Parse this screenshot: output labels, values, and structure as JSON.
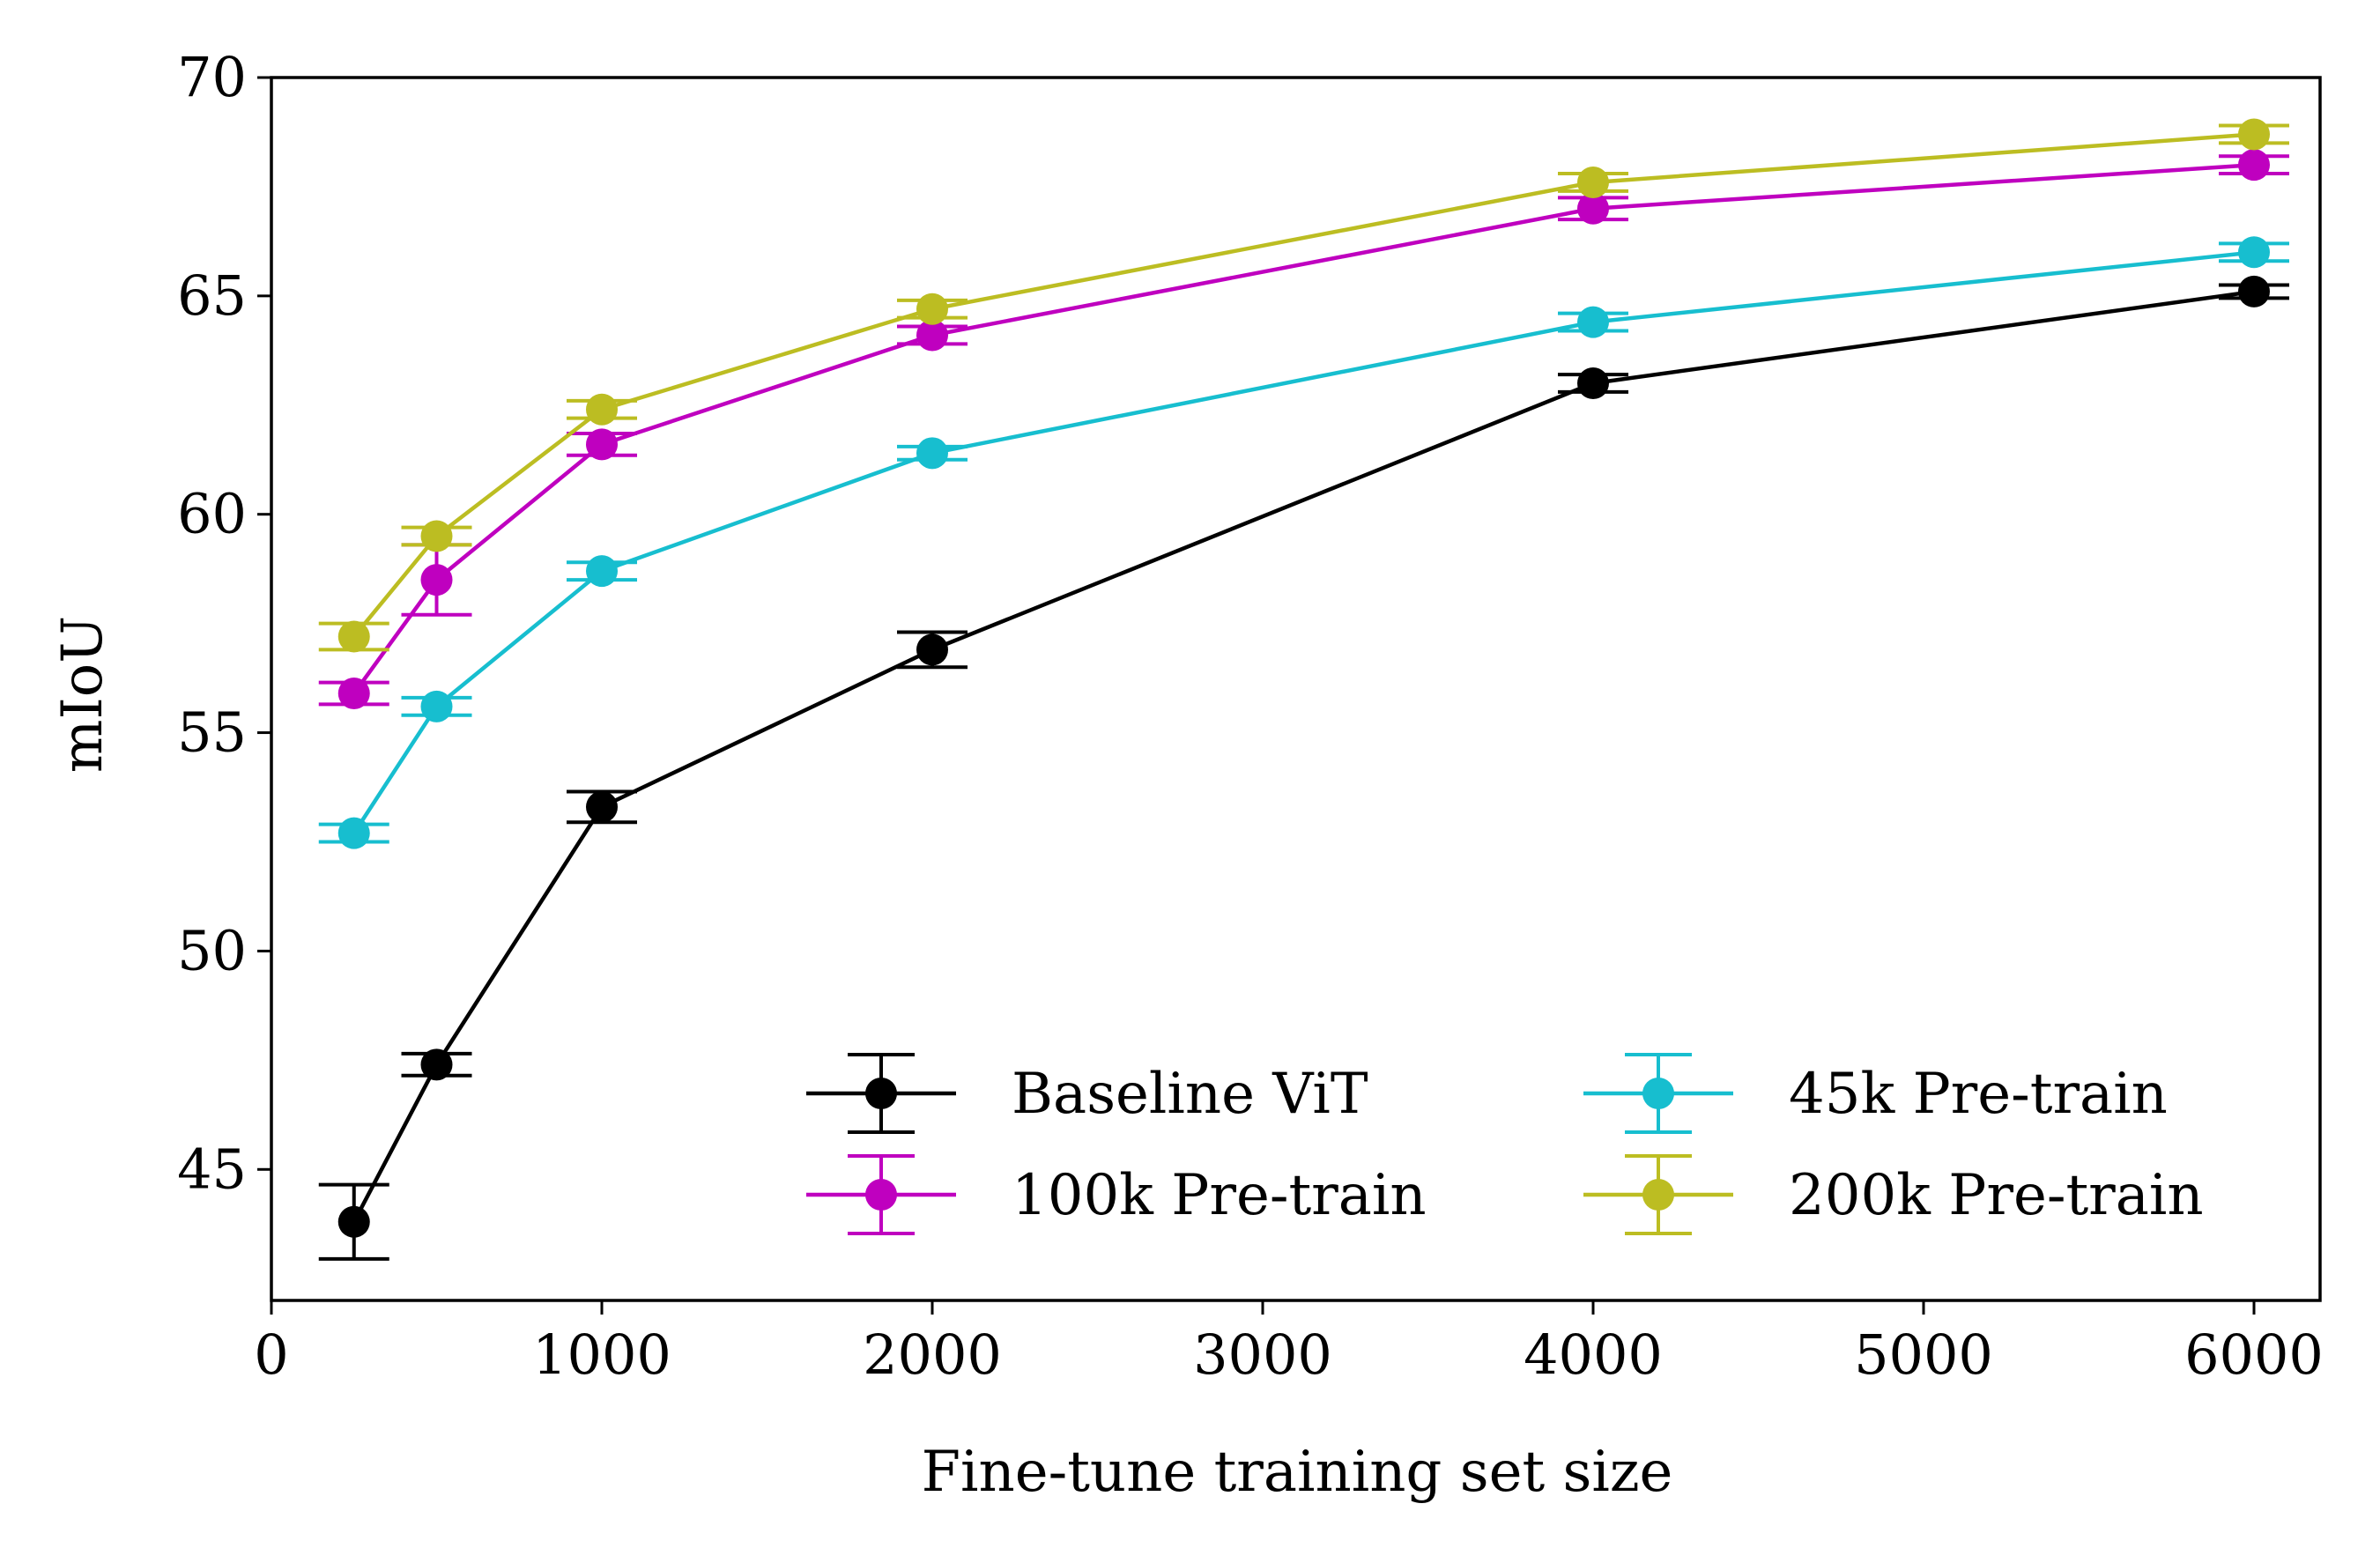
{
  "chart_data": {
    "type": "line",
    "title": "",
    "xlabel": "Fine-tune training set size",
    "ylabel": "mIoU",
    "xlim": [
      0,
      6200
    ],
    "ylim": [
      42,
      70
    ],
    "xticks": [
      0,
      1000,
      2000,
      3000,
      4000,
      5000,
      6000
    ],
    "xtick_labels": [
      "0",
      "1000",
      "2000",
      "3000",
      "4000",
      "5000",
      "6000"
    ],
    "yticks": [
      45,
      50,
      55,
      60,
      65,
      70
    ],
    "ytick_labels": [
      "45",
      "50",
      "55",
      "60",
      "65",
      "70"
    ],
    "grid": false,
    "legend": {
      "position": "lower-right",
      "columns": 2
    },
    "x": [
      250,
      500,
      1000,
      2000,
      4000,
      6000
    ],
    "series": [
      {
        "name": "Baseline ViT",
        "color": "#000000",
        "values": [
          43.8,
          47.4,
          53.3,
          56.9,
          63.0,
          65.1
        ],
        "errors": [
          0.85,
          0.25,
          0.35,
          0.4,
          0.2,
          0.15
        ]
      },
      {
        "name": "45k Pre-train",
        "color": "#17becf",
        "values": [
          52.7,
          55.6,
          58.7,
          61.4,
          64.4,
          66.0
        ],
        "errors": [
          0.2,
          0.2,
          0.2,
          0.15,
          0.2,
          0.2
        ]
      },
      {
        "name": "100k Pre-train",
        "color": "#bf00bf",
        "values": [
          55.9,
          58.5,
          61.6,
          64.1,
          67.0,
          68.0
        ],
        "errors": [
          0.25,
          0.8,
          0.25,
          0.2,
          0.25,
          0.2
        ]
      },
      {
        "name": "200k Pre-train",
        "color": "#bcbd22",
        "values": [
          57.2,
          59.5,
          62.4,
          64.7,
          67.6,
          68.7
        ],
        "errors": [
          0.3,
          0.2,
          0.2,
          0.2,
          0.2,
          0.2
        ]
      }
    ]
  }
}
